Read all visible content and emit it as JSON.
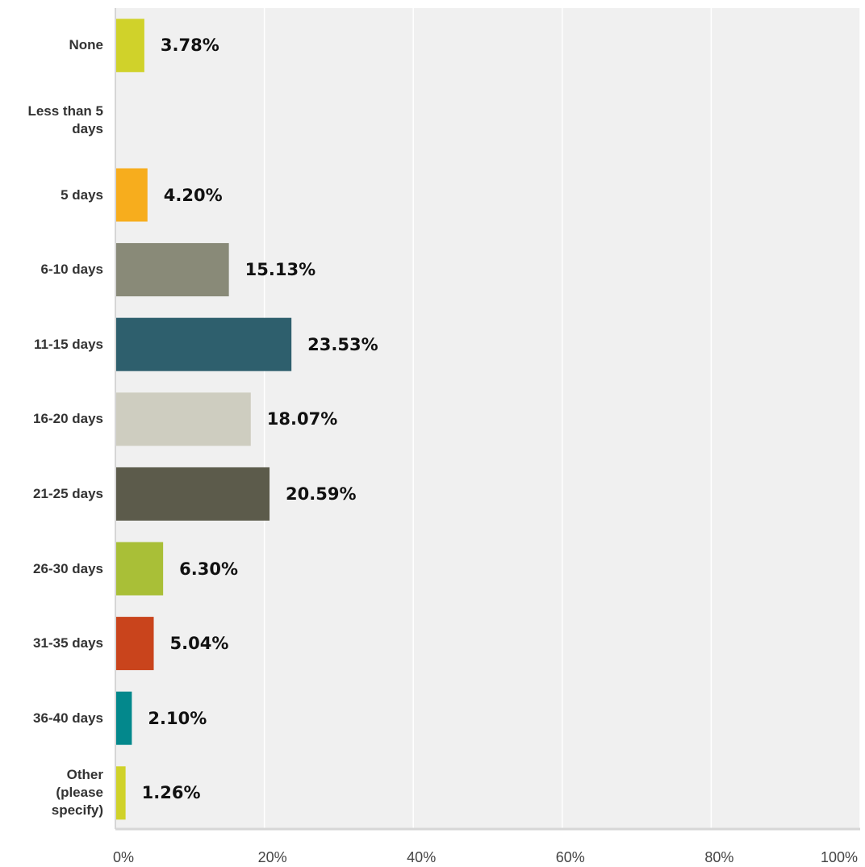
{
  "chart_data": {
    "type": "bar",
    "orientation": "horizontal",
    "categories": [
      "None",
      "Less than 5\ndays",
      "5 days",
      "6-10 days",
      "11-15 days",
      "16-20 days",
      "21-25 days",
      "26-30 days",
      "31-35 days",
      "36-40 days",
      "Other\n(please\nspecify)"
    ],
    "values": [
      3.78,
      0,
      4.2,
      15.13,
      23.53,
      18.07,
      20.59,
      6.3,
      5.04,
      2.1,
      1.26
    ],
    "value_labels": [
      "3.78%",
      "",
      "4.20%",
      "15.13%",
      "23.53%",
      "18.07%",
      "20.59%",
      "6.30%",
      "5.04%",
      "2.10%",
      "1.26%"
    ],
    "colors": [
      "#d0d22a",
      "#d0d22a",
      "#f7ad1d",
      "#898a78",
      "#2e5f6d",
      "#cecdc0",
      "#5c5b4b",
      "#a9bf37",
      "#c9441c",
      "#03888c",
      "#d0d22a"
    ],
    "xlim": [
      0,
      100
    ],
    "x_ticks": [
      0,
      20,
      40,
      60,
      80,
      100
    ],
    "x_tick_labels": [
      "0%",
      "20%",
      "40%",
      "60%",
      "80%",
      "100%"
    ],
    "grid": true,
    "plot_background": "#f0f0f0",
    "gridline_color": "#ffffff",
    "title": "",
    "xlabel": "",
    "ylabel": ""
  }
}
